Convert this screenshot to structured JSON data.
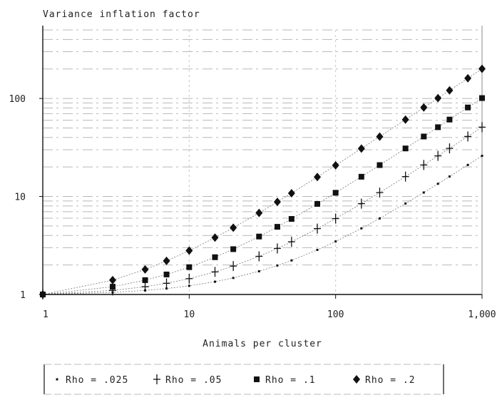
{
  "chart_data": {
    "type": "scatter",
    "ylabel": "Variance inflation factor",
    "xlabel": "Animals per cluster",
    "x_scale": "log",
    "y_scale": "log",
    "xlim": [
      1,
      1000
    ],
    "ylim": [
      1,
      500
    ],
    "grid": true,
    "legend_position": "bottom",
    "x_ticks": [
      "1",
      "10",
      "100",
      "1,000"
    ],
    "y_ticks": [
      "1",
      "10",
      "100"
    ],
    "x": [
      1,
      3,
      5,
      7,
      10,
      15,
      20,
      30,
      40,
      50,
      75,
      100,
      150,
      200,
      300,
      400,
      500,
      600,
      800,
      1000
    ],
    "series": [
      {
        "name": "Rho = .025",
        "marker": "dot",
        "values": [
          1,
          1.05,
          1.1,
          1.15,
          1.225,
          1.35,
          1.475,
          1.725,
          1.975,
          2.225,
          2.85,
          3.475,
          4.725,
          5.975,
          8.475,
          10.975,
          13.475,
          15.975,
          20.975,
          25.975
        ]
      },
      {
        "name": "Rho = .05",
        "marker": "plus",
        "values": [
          1,
          1.1,
          1.2,
          1.3,
          1.45,
          1.7,
          1.95,
          2.45,
          2.95,
          3.45,
          4.7,
          5.95,
          8.45,
          10.95,
          15.95,
          20.95,
          25.95,
          30.95,
          40.95,
          50.95
        ]
      },
      {
        "name": "Rho = .1",
        "marker": "square",
        "values": [
          1,
          1.2,
          1.4,
          1.6,
          1.9,
          2.4,
          2.9,
          3.9,
          4.9,
          5.9,
          8.4,
          10.9,
          15.9,
          20.9,
          30.9,
          40.9,
          50.9,
          60.9,
          80.9,
          100.9
        ]
      },
      {
        "name": "Rho = .2",
        "marker": "diamond",
        "values": [
          1,
          1.4,
          1.8,
          2.2,
          2.8,
          3.8,
          4.8,
          6.8,
          8.8,
          10.8,
          15.8,
          20.8,
          30.8,
          40.8,
          60.8,
          80.8,
          100.8,
          120.8,
          160.8,
          200.8
        ]
      }
    ]
  }
}
